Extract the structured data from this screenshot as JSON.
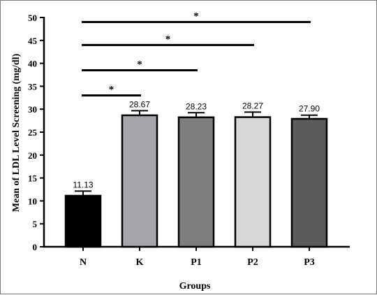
{
  "chart_data": {
    "type": "bar",
    "categories": [
      "N",
      "K",
      "P1",
      "P2",
      "P3"
    ],
    "values": [
      11.13,
      28.67,
      28.23,
      28.27,
      27.9
    ],
    "value_labels": [
      "11.13",
      "28.67",
      "28.23",
      "28.27",
      "27.90"
    ],
    "errors": [
      1.0,
      1.0,
      1.0,
      1.1,
      0.8
    ],
    "colors": [
      "#000000",
      "#a7a6ac",
      "#7e7f7d",
      "#d6d7d6",
      "#5b5b5b"
    ],
    "xlabel": "Groups",
    "ylabel": "Mean of LDL Level Screening (mg/dl)",
    "ylim": [
      0,
      50
    ],
    "yticks": [
      "0",
      "5",
      "10",
      "15",
      "20",
      "25",
      "30",
      "35",
      "40",
      "45",
      "50"
    ],
    "grid": false,
    "significance": [
      {
        "from": "N",
        "to": "K",
        "label": "*",
        "y": 33.0
      },
      {
        "from": "N",
        "to": "P1",
        "label": "*",
        "y": 38.5
      },
      {
        "from": "N",
        "to": "P2",
        "label": "*",
        "y": 44.0
      },
      {
        "from": "N",
        "to": "P3",
        "label": "*",
        "y": 49.0
      }
    ]
  }
}
